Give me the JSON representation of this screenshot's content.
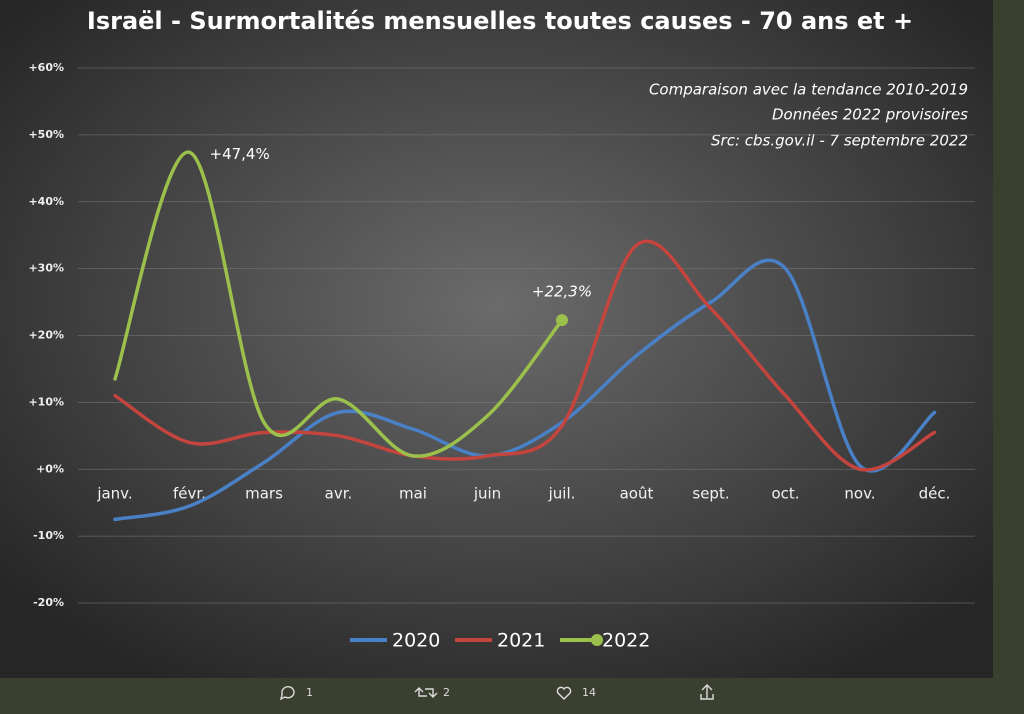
{
  "chart_data": {
    "type": "line",
    "title": "Israël - Surmortalités mensuelles toutes causes - 70 ans et +",
    "notes": [
      "Comparaison avec la tendance 2010-2019",
      "Données 2022 provisoires",
      "Src: cbs.gov.il - 7 septembre 2022"
    ],
    "categories": [
      "janv.",
      "févr.",
      "mars",
      "avr.",
      "mai",
      "juin",
      "juil.",
      "août",
      "sept.",
      "oct.",
      "nov.",
      "déc."
    ],
    "series": [
      {
        "name": "2020",
        "color": "#4a80c6",
        "values": [
          -7.5,
          -5.5,
          1,
          8.5,
          6,
          2,
          7,
          17,
          25,
          30,
          0.5,
          8.5
        ]
      },
      {
        "name": "2021",
        "color": "#c4443e",
        "values": [
          11,
          4,
          5.5,
          5,
          2,
          2,
          6.5,
          33.5,
          24,
          11,
          0,
          5.5
        ]
      },
      {
        "name": "2022",
        "color": "#9bc04c",
        "values": [
          13.5,
          47.4,
          7,
          10.5,
          2,
          8,
          22.3,
          null,
          null,
          null,
          null,
          null
        ],
        "value_labels": [
          null,
          "+47,4%",
          null,
          null,
          null,
          null,
          "+22,3%",
          null,
          null,
          null,
          null,
          null
        ]
      }
    ],
    "ylim": [
      -20,
      60
    ],
    "yticks": [
      {
        "value": -20,
        "label": "-20%"
      },
      {
        "value": -10,
        "label": "-10%"
      },
      {
        "value": 0,
        "label": "+0%"
      },
      {
        "value": 10,
        "label": "+10%"
      },
      {
        "value": 20,
        "label": "+20%"
      },
      {
        "value": 30,
        "label": "+30%"
      },
      {
        "value": 40,
        "label": "+40%"
      },
      {
        "value": 50,
        "label": "+50%"
      },
      {
        "value": 60,
        "label": "+60%"
      }
    ],
    "grid": true
  },
  "actions": {
    "reply": 1,
    "retweet": 2,
    "like": 14
  }
}
